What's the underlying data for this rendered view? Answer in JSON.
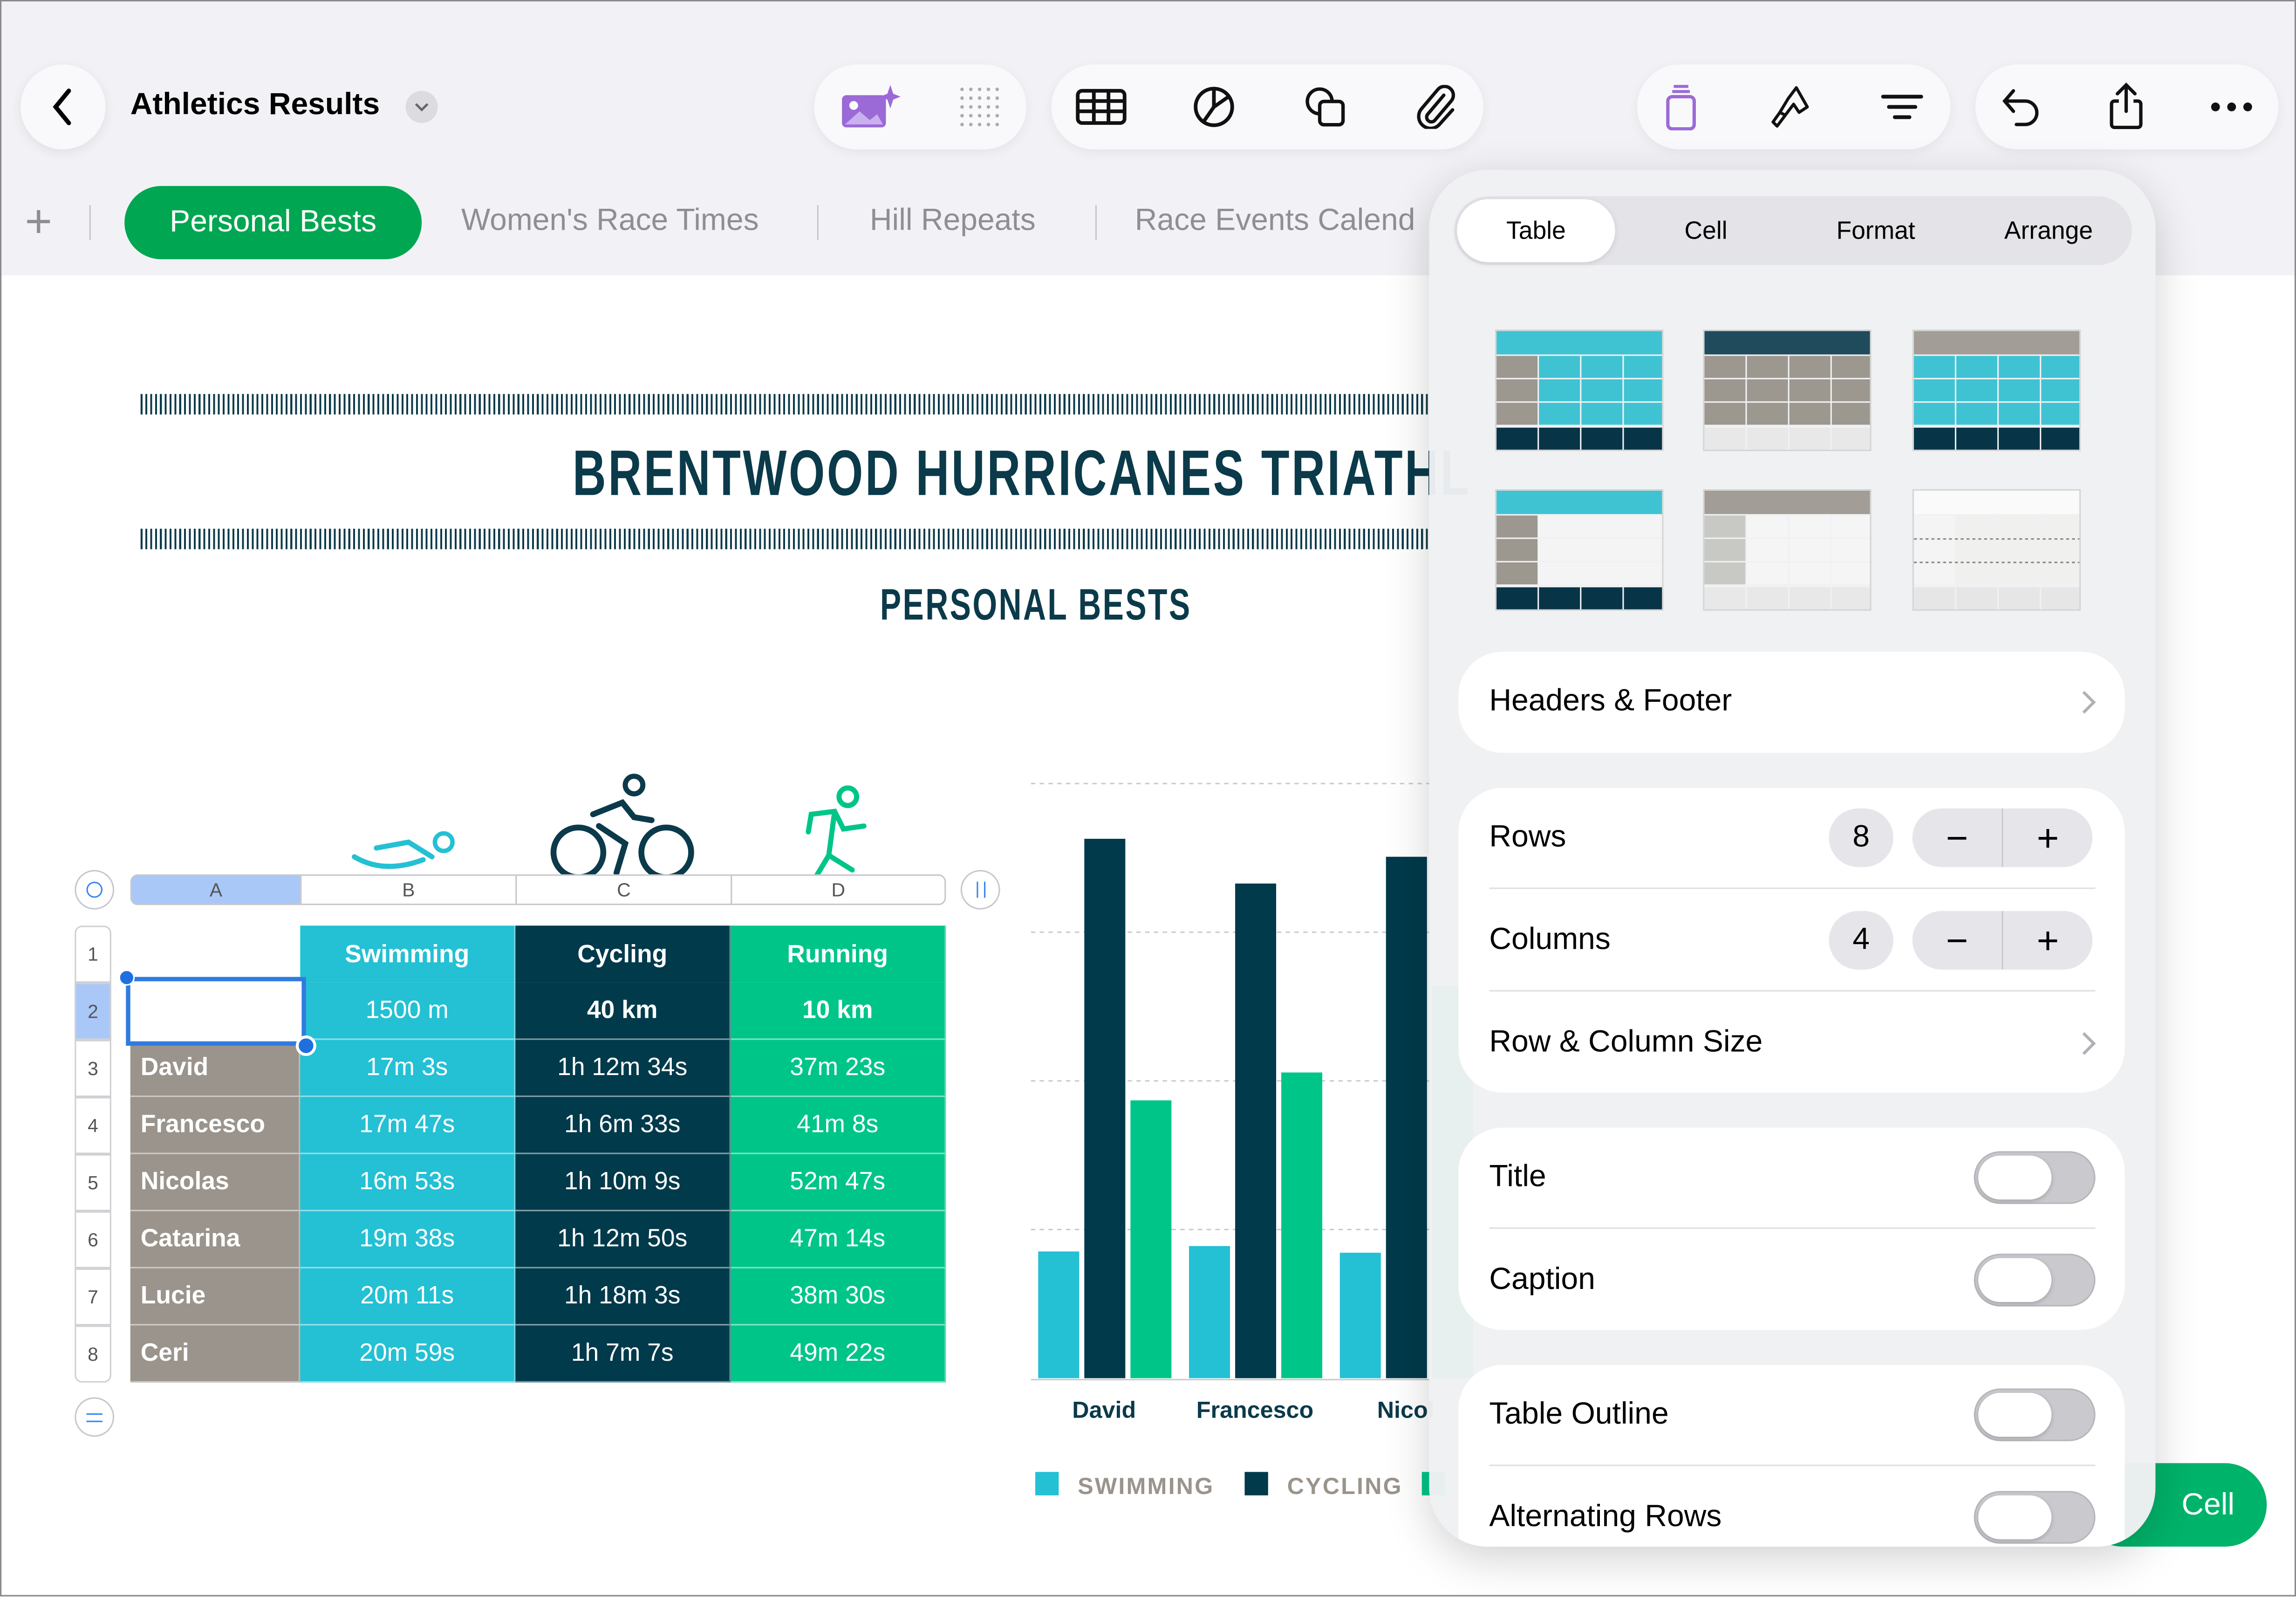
{
  "app": {
    "title": "Athletics Results"
  },
  "toolbar": {
    "left_icons": [
      "image-playground-icon",
      "grid-dots-icon"
    ],
    "insert_icons": [
      "table-icon",
      "chart-icon",
      "shapes-icon",
      "attachment-icon"
    ],
    "format_icons": [
      "format-icon",
      "paintbrush-icon",
      "organize-icon"
    ],
    "action_icons": [
      "undo-icon",
      "share-icon",
      "more-icon"
    ],
    "accent": "#9b6ad6"
  },
  "sheets": {
    "add_label": "+",
    "tabs": [
      {
        "label": "Personal Bests",
        "active": true
      },
      {
        "label": "Women's Race Times"
      },
      {
        "label": "Hill Repeats"
      },
      {
        "label": "Race Events Calend"
      }
    ],
    "active_color": "#00a651"
  },
  "document": {
    "title": "BRENTWOOD HURRICANES TRIATHL",
    "subtitle": "PERSONAL BESTS"
  },
  "table": {
    "column_letters": [
      "A",
      "B",
      "C",
      "D"
    ],
    "row_numbers": [
      "1",
      "2",
      "3",
      "4",
      "5",
      "6",
      "7",
      "8"
    ],
    "headers": [
      "",
      "Swimming",
      "Cycling",
      "Running"
    ],
    "distances": [
      "",
      "1500 m",
      "40 km",
      "10 km"
    ],
    "rows": [
      [
        "David",
        "17m 3s",
        "1h 12m 34s",
        "37m 23s"
      ],
      [
        "Francesco",
        "17m 47s",
        "1h 6m 33s",
        "41m 8s"
      ],
      [
        "Nicolas",
        "16m 53s",
        "1h 10m 9s",
        "52m 47s"
      ],
      [
        "Catarina",
        "19m 38s",
        "1h 12m 50s",
        "47m 14s"
      ],
      [
        "Lucie",
        "20m 11s",
        "1h 18m 3s",
        "38m 30s"
      ],
      [
        "Ceri",
        "20m 59s",
        "1h 7m 7s",
        "49m 22s"
      ]
    ],
    "selected_cell": "A2",
    "colors": {
      "name": "#9a948c",
      "swimming": "#24c0d4",
      "cycling": "#003a4b",
      "running": "#00c589",
      "selection": "#2f7be0"
    }
  },
  "chart_data": {
    "type": "bar",
    "categories": [
      "David",
      "Francesco",
      "Nicol"
    ],
    "series": [
      {
        "name": "SWIMMING",
        "values": [
          17.05,
          17.78,
          16.88
        ],
        "color": "#24c0d4"
      },
      {
        "name": "CYCLING",
        "values": [
          72.57,
          66.55,
          70.15
        ],
        "color": "#003a4b"
      },
      {
        "values": [
          37.38,
          41.13,
          52.78
        ],
        "color": "#00c589"
      }
    ],
    "ylim": [
      0,
      80
    ],
    "grid": true,
    "legend": "bottom"
  },
  "panel": {
    "tabs": [
      "Table",
      "Cell",
      "Format",
      "Arrange"
    ],
    "active_tab": "Table",
    "styles_count": 6,
    "headers_footer": "Headers & Footer",
    "rows_label": "Rows",
    "rows_value": "8",
    "columns_label": "Columns",
    "columns_value": "4",
    "minus": "−",
    "plus": "+",
    "row_col_size": "Row & Column Size",
    "title_label": "Title",
    "title_on": false,
    "caption_label": "Caption",
    "caption_on": false,
    "outline_label": "Table Outline",
    "outline_on": false,
    "alt_rows_label": "Alternating Rows",
    "alt_rows_on": false
  },
  "cell_button": "Cell"
}
